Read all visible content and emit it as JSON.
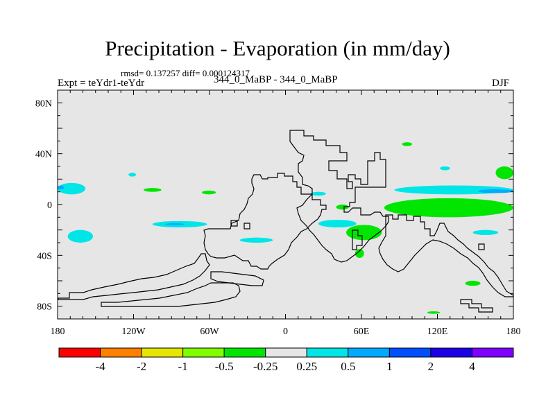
{
  "chart_data": {
    "type": "heatmap",
    "title": "Precipitation - Evaporation (in mm/day)",
    "stats_text": "rmsd= 0.137257 diff= 0.000124317",
    "left_label": "Expt = teYdr1-teYdr",
    "center_label": "344_0_MaBP - 344_0_MaBP",
    "right_label": "DJF",
    "x_range": [
      -180,
      180
    ],
    "y_range": [
      -90,
      90
    ],
    "x_ticks": [
      {
        "value": -180,
        "label": "180"
      },
      {
        "value": -120,
        "label": "120W"
      },
      {
        "value": -60,
        "label": "60W"
      },
      {
        "value": 0,
        "label": "0"
      },
      {
        "value": 60,
        "label": "60E"
      },
      {
        "value": 120,
        "label": "120E"
      },
      {
        "value": 180,
        "label": "180"
      }
    ],
    "y_ticks": [
      {
        "value": 80,
        "label": "80N"
      },
      {
        "value": 40,
        "label": "40N"
      },
      {
        "value": 0,
        "label": "0"
      },
      {
        "value": -40,
        "label": "40S"
      },
      {
        "value": -80,
        "label": "80S"
      }
    ],
    "colorbar": {
      "colors": [
        "#ff0000",
        "#ff8000",
        "#e6e600",
        "#80ff00",
        "#00e600",
        "#e6e6e6",
        "#00e6e6",
        "#00aaff",
        "#0050ff",
        "#1e00e6",
        "#8000ff"
      ],
      "labels": [
        "-4",
        "-2",
        "-1",
        "-0.5",
        "-0.25",
        "0.25",
        "0.5",
        "1",
        "2",
        "4"
      ]
    },
    "no_change_color": "#e6e6e6",
    "regions": [
      {
        "name": "cyan band west",
        "color": "#00e6e6",
        "lon": [
          -180,
          -158
        ],
        "lat": [
          8,
          17
        ]
      },
      {
        "name": "blue core west",
        "color": "#00aaff",
        "lon": [
          -180,
          -175
        ],
        "lat": [
          12,
          15
        ]
      },
      {
        "name": "cyan pacific south",
        "color": "#00e6e6",
        "lon": [
          -105,
          -62
        ],
        "lat": [
          -18,
          -13
        ]
      },
      {
        "name": "blue streak pacific",
        "color": "#00aaff",
        "lon": [
          -95,
          -80
        ],
        "lat": [
          -16,
          -15
        ]
      },
      {
        "name": "cyan sw pacific",
        "color": "#00e6e6",
        "lon": [
          -172,
          -152
        ],
        "lat": [
          -30,
          -20
        ]
      },
      {
        "name": "cyan north pacific",
        "color": "#00e6e6",
        "lon": [
          -124,
          -118
        ],
        "lat": [
          22,
          25
        ]
      },
      {
        "name": "green pacific",
        "color": "#00e600",
        "lon": [
          -112,
          -98
        ],
        "lat": [
          10,
          13
        ]
      },
      {
        "name": "green east pacific",
        "color": "#00e600",
        "lon": [
          -66,
          -55
        ],
        "lat": [
          8,
          11
        ]
      },
      {
        "name": "cyan south atlantic",
        "color": "#00e6e6",
        "lon": [
          -36,
          -10
        ],
        "lat": [
          -30,
          -26
        ]
      },
      {
        "name": "cyan africa",
        "color": "#00e6e6",
        "lon": [
          20,
          32
        ],
        "lat": [
          7,
          10
        ]
      },
      {
        "name": "green africa",
        "color": "#00e600",
        "lon": [
          40,
          50
        ],
        "lat": [
          -4,
          0
        ]
      },
      {
        "name": "green south africa east",
        "color": "#00e600",
        "lon": [
          48,
          76
        ],
        "lat": [
          -28,
          -16
        ]
      },
      {
        "name": "cyan indian ocean",
        "color": "#00e6e6",
        "lon": [
          26,
          56
        ],
        "lat": [
          -18,
          -12
        ]
      },
      {
        "name": "green mozambique",
        "color": "#00e600",
        "lon": [
          55,
          62
        ],
        "lat": [
          -42,
          -35
        ]
      },
      {
        "name": "green australia",
        "color": "#00e600",
        "lon": [
          78,
          180
        ],
        "lat": [
          -10,
          5
        ]
      },
      {
        "name": "cyan west pacific",
        "color": "#00e6e6",
        "lon": [
          86,
          180
        ],
        "lat": [
          8,
          15
        ]
      },
      {
        "name": "blue west pacific",
        "color": "#00aaff",
        "lon": [
          152,
          180
        ],
        "lat": [
          9,
          12
        ]
      },
      {
        "name": "green nw pacific",
        "color": "#00e600",
        "lon": [
          166,
          180
        ],
        "lat": [
          20,
          30
        ]
      },
      {
        "name": "cyan nw pacific",
        "color": "#00e6e6",
        "lon": [
          148,
          168
        ],
        "lat": [
          -24,
          -20
        ]
      },
      {
        "name": "green north atlantic",
        "color": "#00e600",
        "lon": [
          92,
          100
        ],
        "lat": [
          46,
          49
        ]
      },
      {
        "name": "cyan central pacific",
        "color": "#00e6e6",
        "lon": [
          122,
          130
        ],
        "lat": [
          27,
          30
        ]
      },
      {
        "name": "green south pacific",
        "color": "#00e600",
        "lon": [
          142,
          154
        ],
        "lat": [
          -64,
          -60
        ]
      },
      {
        "name": "green antarctic",
        "color": "#00e600",
        "lon": [
          112,
          122
        ],
        "lat": [
          -86,
          -84
        ]
      }
    ]
  }
}
